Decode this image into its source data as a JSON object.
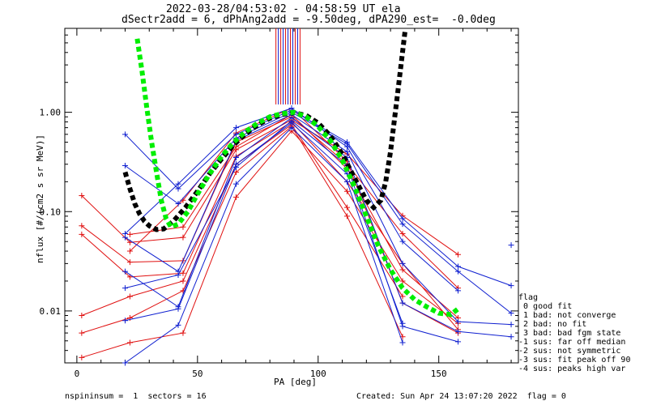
{
  "chart_data": {
    "type": "scatter",
    "title_line1": "2022-03-28/04:53:02 - 04:58:59 UT ela",
    "title_line2": "dSectr2add = 6, dPhAng2add = -9.50deg, dPA290_est=  -0.0deg",
    "xlabel": "PA [deg]",
    "ylabel": "nflux [#/(cm2 s sr MeV)]",
    "xlim": [
      -5,
      183
    ],
    "ylim": [
      0.003,
      7
    ],
    "yscale": "log",
    "x_ticks": [
      0,
      50,
      100,
      150
    ],
    "x_tick_labels": [
      "0",
      "50",
      "100",
      "150"
    ],
    "y_ticks": [
      0.01,
      0.1,
      1.0
    ],
    "y_tick_labels": [
      "0.01",
      "0.10",
      "1.00"
    ],
    "grid": false,
    "legend_position": "right",
    "colors": {
      "red": "#e01010",
      "blue": "#1020d0",
      "green": "#00ee00",
      "black": "#000000"
    },
    "series": [
      {
        "color": "red",
        "x": [
          2,
          22,
          44,
          66,
          89,
          112,
          135,
          158
        ],
        "y": [
          0.145,
          0.049,
          0.055,
          0.42,
          0.84,
          0.38,
          0.091,
          0.037
        ]
      },
      {
        "color": "red",
        "x": [
          2,
          22,
          44,
          66,
          89,
          112,
          135,
          158
        ],
        "y": [
          0.072,
          0.031,
          0.032,
          0.5,
          0.9,
          0.3,
          0.06,
          0.017
        ]
      },
      {
        "color": "red",
        "x": [
          2,
          22,
          44,
          66,
          89,
          112,
          135,
          158
        ],
        "y": [
          0.059,
          0.022,
          0.024,
          0.36,
          0.8,
          0.2,
          0.03,
          0.0065
        ]
      },
      {
        "color": "red",
        "x": [
          2,
          22,
          44,
          66,
          89,
          112,
          135
        ],
        "y": [
          0.009,
          0.014,
          0.02,
          0.3,
          0.75,
          0.11,
          0.014
        ]
      },
      {
        "color": "red",
        "x": [
          2,
          22,
          44,
          66,
          89,
          112,
          135
        ],
        "y": [
          0.006,
          0.0085,
          0.016,
          0.25,
          0.72,
          0.09,
          0.0055
        ]
      },
      {
        "color": "red",
        "x": [
          2,
          22,
          44,
          66,
          89,
          112,
          135,
          158
        ],
        "y": [
          0.0034,
          0.0048,
          0.006,
          0.14,
          0.65,
          0.16,
          0.02,
          0.0075
        ]
      },
      {
        "color": "red",
        "x": [
          22,
          44,
          66,
          89,
          112,
          135,
          158
        ],
        "y": [
          0.04,
          0.13,
          0.62,
          1.1,
          0.32,
          0.012,
          0.006
        ]
      },
      {
        "color": "red",
        "x": [
          22,
          44,
          66,
          89,
          112,
          135,
          158
        ],
        "y": [
          0.059,
          0.07,
          0.45,
          0.95,
          0.27,
          0.026,
          0.0085
        ]
      },
      {
        "color": "blue",
        "x": [
          20,
          42,
          66,
          89,
          112,
          135,
          158,
          180
        ],
        "y": [
          0.6,
          0.17,
          0.6,
          1.05,
          0.5,
          0.085,
          0.028,
          0.018
        ]
      },
      {
        "color": "blue",
        "x": [
          20,
          42,
          66,
          89,
          112,
          135,
          158,
          180
        ],
        "y": [
          0.29,
          0.12,
          0.55,
          1.0,
          0.48,
          0.075,
          0.025,
          0.0095
        ]
      },
      {
        "color": "blue",
        "x": [
          20,
          42,
          66,
          89,
          112,
          135,
          158
        ],
        "y": [
          0.06,
          0.19,
          0.7,
          1.1,
          0.45,
          0.05,
          0.016
        ]
      },
      {
        "color": "blue",
        "x": [
          20,
          42,
          66,
          89,
          112,
          135,
          158,
          180
        ],
        "y": [
          0.055,
          0.025,
          0.52,
          0.95,
          0.4,
          0.03,
          0.0078,
          0.0073
        ]
      },
      {
        "color": "blue",
        "x": [
          20,
          42,
          66,
          89,
          112,
          135,
          158,
          180
        ],
        "y": [
          0.025,
          0.011,
          0.35,
          0.88,
          0.35,
          0.012,
          0.0062,
          0.0055
        ]
      },
      {
        "color": "blue",
        "x": [
          20,
          42,
          66,
          89,
          112,
          135,
          158
        ],
        "y": [
          0.017,
          0.023,
          0.28,
          0.82,
          0.29,
          0.007,
          0.0049
        ]
      },
      {
        "color": "blue",
        "x": [
          20,
          42,
          66,
          89,
          112,
          135
        ],
        "y": [
          0.008,
          0.0105,
          0.3,
          0.78,
          0.24,
          0.0075
        ]
      },
      {
        "color": "blue",
        "x": [
          20,
          42,
          66,
          89,
          112,
          135
        ],
        "y": [
          0.003,
          0.0072,
          0.19,
          0.7,
          0.2,
          0.0048
        ]
      },
      {
        "color": "blue",
        "x": [
          180
        ],
        "y": [
          0.046
        ]
      }
    ],
    "fit_green": {
      "color": "green",
      "style": "thick dotted",
      "x": [
        25,
        27,
        29,
        31,
        33,
        35,
        37,
        39,
        42,
        46,
        50,
        55,
        60,
        65,
        70,
        75,
        80,
        85,
        90,
        95,
        100,
        105,
        110,
        115,
        120,
        125,
        130,
        135,
        140,
        145,
        150,
        155,
        158
      ],
      "y": [
        5.5,
        2.6,
        1.1,
        0.5,
        0.25,
        0.13,
        0.085,
        0.07,
        0.075,
        0.1,
        0.15,
        0.24,
        0.36,
        0.5,
        0.64,
        0.78,
        0.9,
        0.97,
        1.0,
        0.9,
        0.72,
        0.52,
        0.33,
        0.18,
        0.09,
        0.045,
        0.026,
        0.017,
        0.013,
        0.011,
        0.0095,
        0.0092,
        0.0105
      ]
    },
    "fit_black": {
      "color": "black",
      "style": "thick dotted",
      "x": [
        20,
        22,
        24,
        26,
        28,
        30,
        33,
        36,
        40,
        45,
        50,
        55,
        60,
        65,
        70,
        75,
        80,
        85,
        90,
        95,
        100,
        105,
        110,
        115,
        120,
        123,
        126,
        128,
        130,
        131.5,
        133,
        134.5,
        136
      ],
      "y": [
        0.25,
        0.17,
        0.12,
        0.095,
        0.08,
        0.072,
        0.066,
        0.067,
        0.08,
        0.11,
        0.16,
        0.24,
        0.34,
        0.47,
        0.61,
        0.75,
        0.87,
        0.95,
        0.99,
        0.93,
        0.78,
        0.58,
        0.38,
        0.22,
        0.13,
        0.11,
        0.13,
        0.2,
        0.4,
        0.8,
        1.6,
        3.2,
        6.5
      ]
    },
    "vertical_bars": {
      "x": [
        82.5,
        83.5,
        84.5,
        85.5,
        86.5,
        87.5,
        88.5,
        89.5,
        90.5,
        91.5,
        92.5
      ],
      "ymin": 1.2,
      "ymax": 7,
      "colors": [
        "red",
        "blue",
        "red",
        "blue",
        "red",
        "blue",
        "red",
        "blue",
        "red",
        "blue",
        "red"
      ]
    }
  },
  "legend": {
    "title": "flag",
    "items": [
      " 0 good fit",
      " 1 bad: not converge",
      " 2 bad: no fit",
      " 3 bad: bad fgm state",
      "-1 sus: far off median",
      "-2 sus: not symmetric",
      "-3 sus: fit peak off 90",
      "-4 sus: peaks high var"
    ]
  },
  "footer": {
    "left": "nspininsum =  1  sectors = 16",
    "right": "Created: Sun Apr 24 13:07:20 2022  flag = 0"
  }
}
